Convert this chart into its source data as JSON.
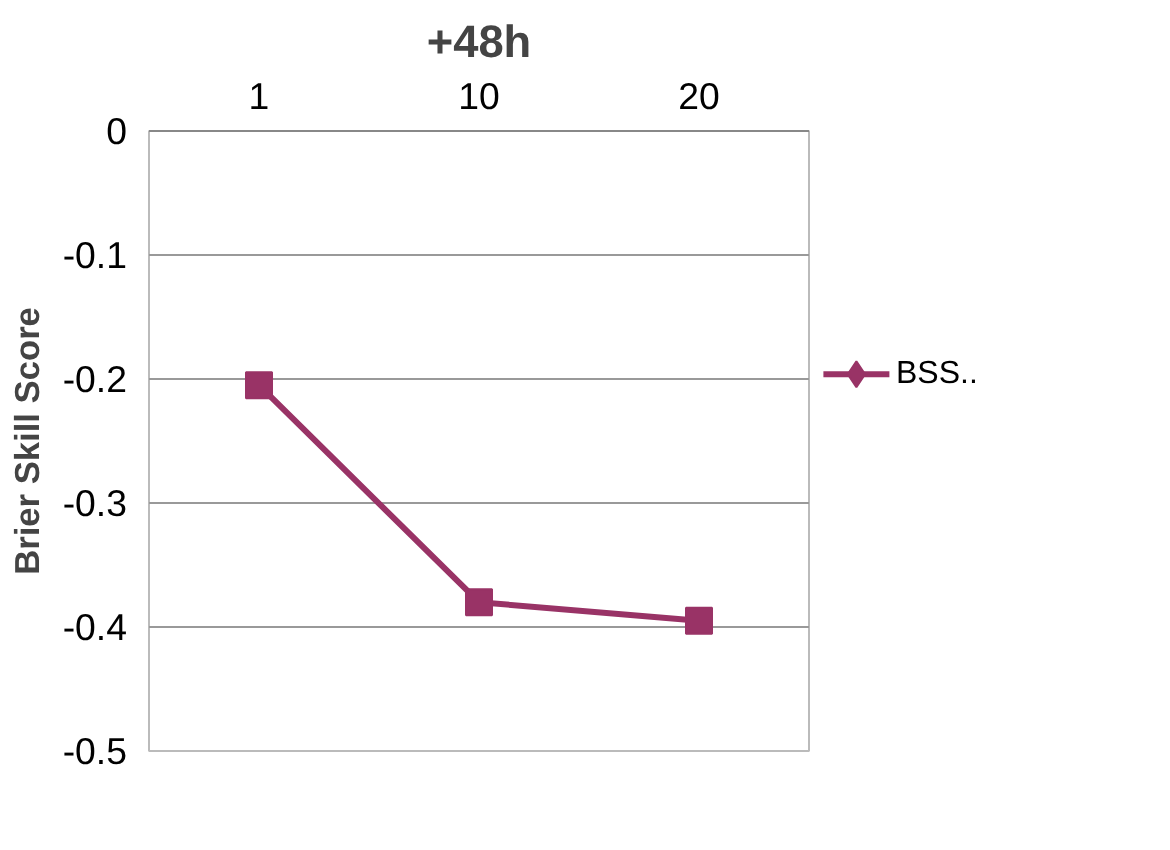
{
  "chart_data": {
    "type": "line",
    "title": "+48h",
    "ylabel": "Brier Skill Score",
    "categories": [
      "1",
      "10",
      "20"
    ],
    "series": [
      {
        "name": "BSS..",
        "color": "#993366",
        "values": [
          -0.205,
          -0.38,
          -0.395
        ]
      }
    ],
    "ylim": [
      -0.5,
      0
    ],
    "yticks": [
      -0.5,
      -0.4,
      -0.3,
      -0.2,
      -0.1,
      0
    ],
    "grid": "y",
    "legend": "right",
    "marker": "square",
    "line_style": "solid"
  }
}
